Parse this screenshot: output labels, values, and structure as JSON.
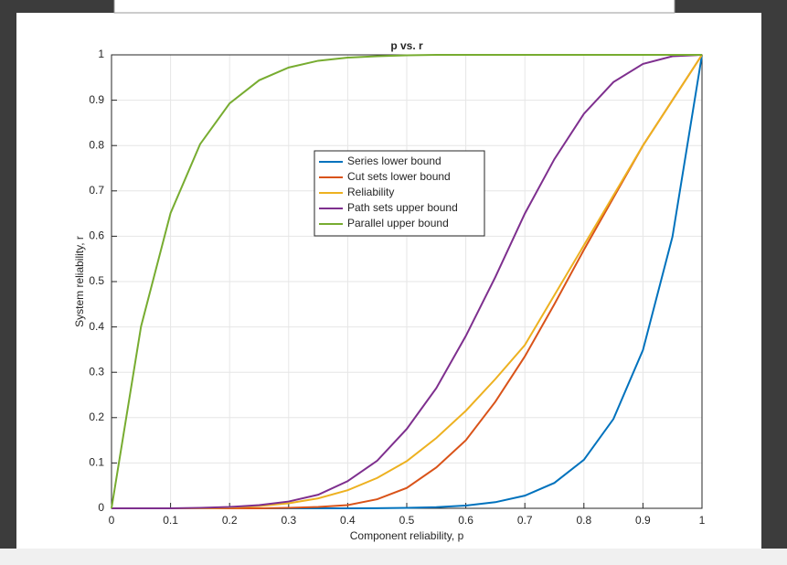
{
  "chart_data": {
    "type": "line",
    "title": "p vs. r",
    "xlabel": "Component reliability, p",
    "ylabel": "System reliability, r",
    "x": [
      0,
      0.05,
      0.1,
      0.15,
      0.2,
      0.25,
      0.3,
      0.35,
      0.4,
      0.45,
      0.5,
      0.55,
      0.6,
      0.65,
      0.7,
      0.75,
      0.8,
      0.85,
      0.9,
      0.95,
      1
    ],
    "series": [
      {
        "name": "Series lower bound",
        "color": "#0072bd",
        "values": [
          0,
          0,
          0,
          0,
          0,
          0,
          0,
          0,
          0.0001,
          0.0003,
          0.001,
          0.0025,
          0.006,
          0.0135,
          0.028,
          0.056,
          0.107,
          0.197,
          0.349,
          0.599,
          1
        ]
      },
      {
        "name": "Cut sets lower bound",
        "color": "#d95319",
        "values": [
          0,
          0,
          0,
          0,
          0,
          0,
          0.001,
          0.003,
          0.007,
          0.02,
          0.045,
          0.09,
          0.15,
          0.235,
          0.335,
          0.45,
          0.57,
          0.685,
          0.8,
          0.9,
          1
        ]
      },
      {
        "name": "Reliability",
        "color": "#edb120",
        "values": [
          0,
          0,
          0,
          0,
          0.002,
          0.005,
          0.011,
          0.022,
          0.04,
          0.067,
          0.104,
          0.155,
          0.215,
          0.285,
          0.36,
          0.47,
          0.58,
          0.69,
          0.8,
          0.9,
          1
        ]
      },
      {
        "name": "Path sets upper bound",
        "color": "#7e2f8e",
        "values": [
          0,
          0,
          0,
          0.001,
          0.003,
          0.007,
          0.015,
          0.03,
          0.06,
          0.105,
          0.175,
          0.265,
          0.38,
          0.51,
          0.65,
          0.77,
          0.87,
          0.94,
          0.98,
          0.997,
          1
        ]
      },
      {
        "name": "Parallel upper bound",
        "color": "#77ac30",
        "values": [
          0,
          0.401,
          0.651,
          0.803,
          0.893,
          0.944,
          0.972,
          0.987,
          0.994,
          0.997,
          0.999,
          1,
          1,
          1,
          1,
          1,
          1,
          1,
          1,
          1,
          1
        ]
      }
    ],
    "xlim": [
      0,
      1
    ],
    "xticks": [
      0,
      0.1,
      0.2,
      0.3,
      0.4,
      0.5,
      0.6,
      0.7,
      0.8,
      0.9,
      1
    ],
    "ylim": [
      0,
      1
    ],
    "yticks": [
      0,
      0.1,
      0.2,
      0.3,
      0.4,
      0.5,
      0.6,
      0.7,
      0.8,
      0.9,
      1
    ],
    "grid": true,
    "legend": "north"
  }
}
